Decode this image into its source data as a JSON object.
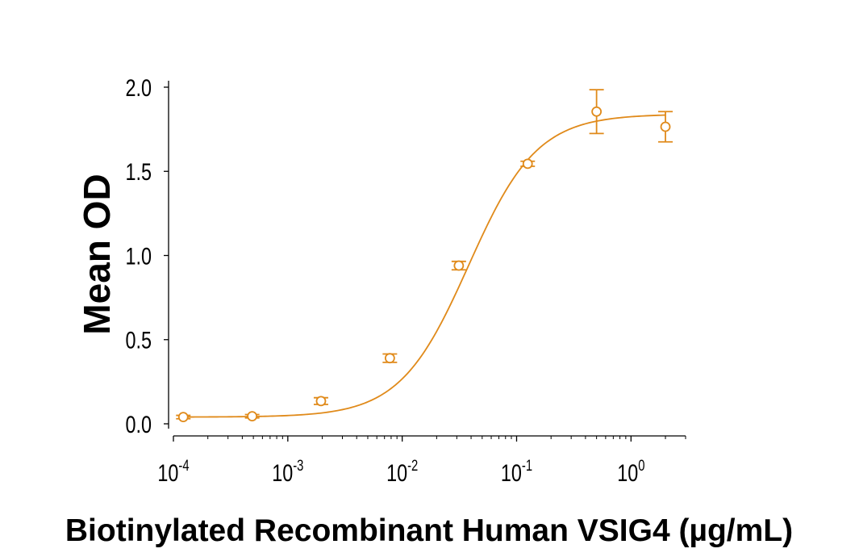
{
  "chart_data": {
    "type": "scatter",
    "xlabel": "Biotinylated Recombinant Human VSIG4 (µg/mL)",
    "ylabel": "Mean OD",
    "x_scale": "log",
    "xlim": [
      0.0001,
      3
    ],
    "ylim": [
      0,
      2.0
    ],
    "y_ticks": [
      "0.0",
      "0.5",
      "1.0",
      "1.5",
      "2.0"
    ],
    "x_ticks": [
      {
        "value": 0.0001,
        "base": "10",
        "exp": "-4"
      },
      {
        "value": 0.001,
        "base": "10",
        "exp": "-3"
      },
      {
        "value": 0.01,
        "base": "10",
        "exp": "-2"
      },
      {
        "value": 0.1,
        "base": "10",
        "exp": "-1"
      },
      {
        "value": 1,
        "base": "10",
        "exp": "0"
      }
    ],
    "grid": false,
    "legend": "none",
    "color": "#e08a1a",
    "series": [
      {
        "points": [
          {
            "x": 0.000122,
            "y": 0.04,
            "err": 0.01
          },
          {
            "x": 0.000488,
            "y": 0.045,
            "err": 0.01
          },
          {
            "x": 0.00195,
            "y": 0.135,
            "err": 0.02
          },
          {
            "x": 0.0078,
            "y": 0.39,
            "err": 0.025
          },
          {
            "x": 0.03125,
            "y": 0.94,
            "err": 0.025
          },
          {
            "x": 0.125,
            "y": 1.545,
            "err": 0.015
          },
          {
            "x": 0.5,
            "y": 1.855,
            "err": 0.13
          },
          {
            "x": 2.0,
            "y": 1.765,
            "err": 0.09
          }
        ]
      }
    ],
    "fit": {
      "model": "4PL",
      "bottom": 0.04,
      "top": 1.84,
      "ec50": 0.038,
      "hill": 1.45
    }
  }
}
